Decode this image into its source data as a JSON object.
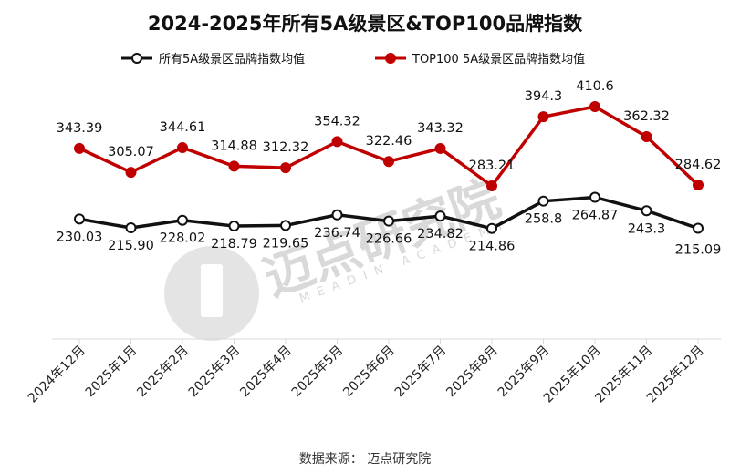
{
  "chart_data": {
    "type": "line",
    "title": "2024-2025年所有5A级景区&TOP100品牌指数",
    "categories": [
      "2024年12月",
      "2025年1月",
      "2025年2月",
      "2025年3月",
      "2025年4月",
      "2025年5月",
      "2025年6月",
      "2025年7月",
      "2025年8月",
      "2025年9月",
      "2025年10月",
      "2025年11月",
      "2025年12月"
    ],
    "series": [
      {
        "name": "所有5A级景区品牌指数均值",
        "color": "#111111",
        "values": [
          230.03,
          215.9,
          228.02,
          218.79,
          219.65,
          236.74,
          226.66,
          234.82,
          214.86,
          258.8,
          264.87,
          243.3,
          215.09
        ],
        "labels": [
          "230.03",
          "215.90",
          "228.02",
          "218.79",
          "219.65",
          "236.74",
          "226.66",
          "234.82",
          "214.86",
          "258.8",
          "264.87",
          "243.3",
          "215.09"
        ]
      },
      {
        "name": "TOP100 5A级景区品牌指数均值",
        "color": "#c00000",
        "values": [
          343.39,
          305.07,
          344.61,
          314.88,
          312.32,
          354.32,
          322.46,
          343.32,
          283.21,
          394.3,
          410.6,
          362.32,
          284.62
        ],
        "labels": [
          "343.39",
          "305.07",
          "344.61",
          "314.88",
          "312.32",
          "354.32",
          "322.46",
          "343.32",
          "283.21",
          "394.3",
          "410.6",
          "362.32",
          "284.62"
        ]
      }
    ],
    "grid": false,
    "legend": "top"
  },
  "source": "数据来源：  迈点研究院",
  "watermark": {
    "text": "迈点研究院",
    "subtext": "MEADIN ACADEMY"
  }
}
